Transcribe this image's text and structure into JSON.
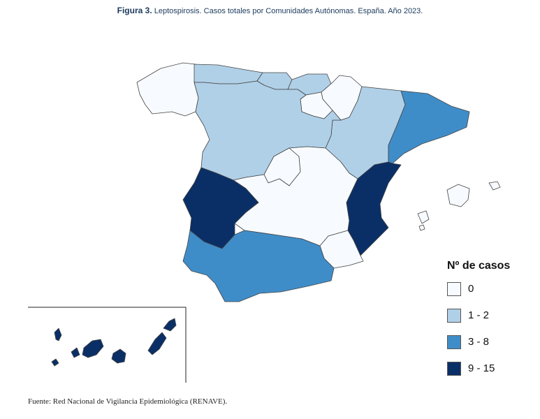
{
  "caption": {
    "label": "Figura 3.",
    "text": "Leptospirosis. Casos totales por Comunidades Autónomas. España. Año 2023."
  },
  "source": "Fuente: Red Nacional de Vigilancia Epidemiológica (RENAVE).",
  "legend": {
    "title": "Nº de casos",
    "classes": [
      {
        "label": "0",
        "color": "#f7fbff"
      },
      {
        "label": "1 - 2",
        "color": "#b0d0e8"
      },
      {
        "label": "3 - 8",
        "color": "#3f8dc8"
      },
      {
        "label": "9 - 15",
        "color": "#0a2f66"
      }
    ]
  },
  "regions": [
    {
      "name": "Galicia",
      "class": "0"
    },
    {
      "name": "Asturias",
      "class": "1 - 2"
    },
    {
      "name": "Cantabria",
      "class": "1 - 2"
    },
    {
      "name": "País Vasco",
      "class": "1 - 2"
    },
    {
      "name": "Navarra",
      "class": "0"
    },
    {
      "name": "La Rioja",
      "class": "0"
    },
    {
      "name": "Aragón",
      "class": "1 - 2"
    },
    {
      "name": "Cataluña",
      "class": "3 - 8"
    },
    {
      "name": "Castilla y León",
      "class": "1 - 2"
    },
    {
      "name": "Madrid",
      "class": "0"
    },
    {
      "name": "Castilla-La Mancha",
      "class": "0"
    },
    {
      "name": "Extremadura",
      "class": "9 - 15"
    },
    {
      "name": "Comunitat Valenciana",
      "class": "9 - 15"
    },
    {
      "name": "Murcia",
      "class": "0"
    },
    {
      "name": "Andalucía",
      "class": "3 - 8"
    },
    {
      "name": "Illes Balears",
      "class": "0"
    },
    {
      "name": "Canarias",
      "class": "9 - 15"
    }
  ]
}
